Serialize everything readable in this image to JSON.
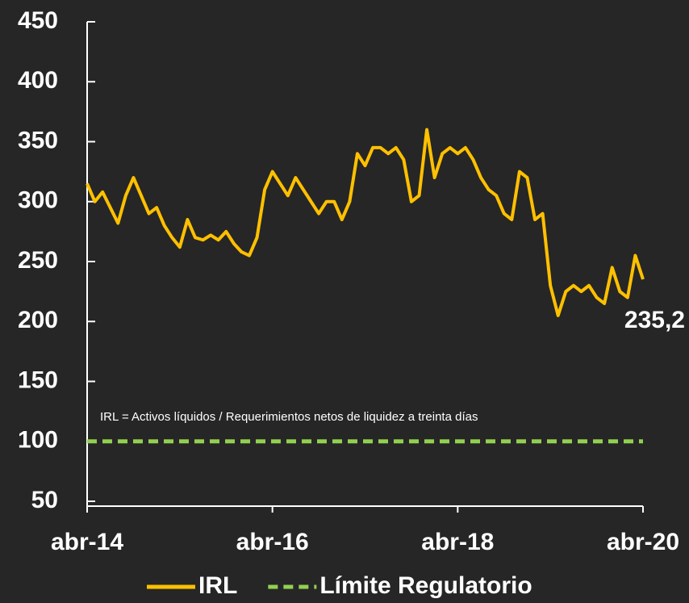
{
  "chart_data": {
    "type": "line",
    "annotation": "IRL = Activos líquidos / Requerimientos netos de liquidez a treinta días",
    "categories": [
      "abr-14",
      null,
      null,
      null,
      null,
      null,
      null,
      null,
      null,
      null,
      null,
      null,
      null,
      null,
      null,
      null,
      null,
      null,
      null,
      null,
      null,
      null,
      null,
      null,
      "abr-16",
      null,
      null,
      null,
      null,
      null,
      null,
      null,
      null,
      null,
      null,
      null,
      null,
      null,
      null,
      null,
      null,
      null,
      null,
      null,
      null,
      null,
      null,
      null,
      "abr-18",
      null,
      null,
      null,
      null,
      null,
      null,
      null,
      null,
      null,
      null,
      null,
      null,
      null,
      null,
      null,
      null,
      null,
      null,
      null,
      null,
      null,
      null,
      null,
      "abr-20"
    ],
    "series": [
      {
        "name": "IRL",
        "color": "#ffc000",
        "dashed": false,
        "values": [
          315,
          300,
          308,
          295,
          282,
          305,
          320,
          305,
          290,
          295,
          280,
          270,
          262,
          285,
          270,
          268,
          272,
          268,
          275,
          265,
          258,
          255,
          270,
          310,
          325,
          315,
          305,
          320,
          310,
          300,
          290,
          300,
          300,
          285,
          300,
          340,
          330,
          345,
          345,
          340,
          345,
          335,
          300,
          305,
          360,
          320,
          340,
          345,
          340,
          345,
          335,
          320,
          310,
          305,
          290,
          285,
          325,
          320,
          285,
          290,
          230,
          205,
          225,
          230,
          225,
          230,
          220,
          215,
          245,
          225,
          220,
          255,
          235.2
        ],
        "value_labels": [
          null,
          null,
          null,
          null,
          null,
          null,
          null,
          null,
          null,
          null,
          null,
          null,
          null,
          null,
          null,
          null,
          null,
          null,
          null,
          null,
          null,
          null,
          null,
          null,
          null,
          null,
          null,
          null,
          null,
          null,
          null,
          null,
          null,
          null,
          null,
          null,
          null,
          null,
          null,
          null,
          null,
          null,
          null,
          null,
          null,
          null,
          null,
          null,
          null,
          null,
          null,
          null,
          null,
          null,
          null,
          null,
          null,
          null,
          null,
          null,
          null,
          null,
          null,
          null,
          null,
          null,
          null,
          null,
          null,
          null,
          null,
          null,
          "235,2"
        ]
      },
      {
        "name": "Límite Regulatorio",
        "color": "#92d050",
        "dashed": true,
        "values": [
          100,
          100,
          100,
          100,
          100,
          100,
          100,
          100,
          100,
          100,
          100,
          100,
          100,
          100,
          100,
          100,
          100,
          100,
          100,
          100,
          100,
          100,
          100,
          100,
          100,
          100,
          100,
          100,
          100,
          100,
          100,
          100,
          100,
          100,
          100,
          100,
          100,
          100,
          100,
          100,
          100,
          100,
          100,
          100,
          100,
          100,
          100,
          100,
          100,
          100,
          100,
          100,
          100,
          100,
          100,
          100,
          100,
          100,
          100,
          100,
          100,
          100,
          100,
          100,
          100,
          100,
          100,
          100,
          100,
          100,
          100,
          100,
          100
        ]
      }
    ],
    "ylim": [
      50,
      450
    ],
    "yticks": [
      50,
      100,
      150,
      200,
      250,
      300,
      350,
      400,
      450
    ],
    "grid": false
  }
}
